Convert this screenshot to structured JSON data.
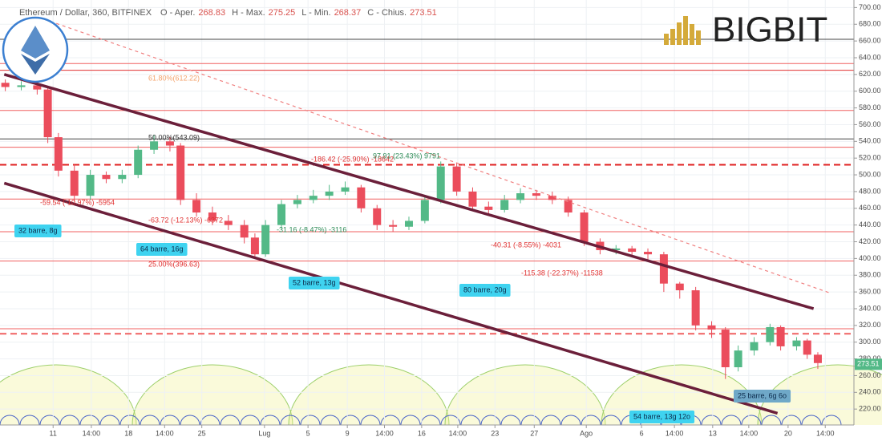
{
  "header": {
    "symbol": "Ethereum / Dollar, 360, BITFINEX",
    "fields": [
      {
        "label": "O - Aper.",
        "value": 268.83
      },
      {
        "label": "H - Max.",
        "value": 275.25
      },
      {
        "label": "L - Min.",
        "value": 268.37
      },
      {
        "label": "C - Chius.",
        "value": 273.51
      }
    ],
    "logo": "BIGBIT"
  },
  "chart_data": {
    "type": "candlestick",
    "up_color": "#53b987",
    "down_color": "#eb4d5c",
    "grid": true,
    "x": [
      0.5,
      2,
      3.5,
      4.5,
      5.5,
      7,
      8.5,
      10,
      11.5,
      13,
      14.5,
      16,
      17,
      18.5,
      20,
      21.5,
      23,
      24,
      25,
      26.5,
      28,
      29.5,
      31,
      32.5,
      34,
      35.5,
      37,
      38.5,
      40,
      41.5,
      43,
      44.5,
      46,
      47.5,
      49,
      50.5,
      52,
      53.5,
      55,
      56.5,
      58,
      59.5,
      61,
      62.5,
      64,
      65.5,
      67,
      68.3,
      69.5,
      71,
      72.5,
      73.5,
      75,
      76,
      77
    ],
    "open": [
      610,
      605,
      607,
      602,
      545,
      505,
      475,
      500,
      495,
      500,
      530,
      540,
      535,
      470,
      455,
      445,
      440,
      425,
      405,
      440,
      465,
      470,
      475,
      480,
      485,
      460,
      440,
      438,
      445,
      470,
      510,
      480,
      462,
      458,
      470,
      478,
      475,
      470,
      455,
      420,
      410,
      412,
      408,
      405,
      370,
      362,
      320,
      315,
      270,
      290,
      300,
      318,
      295,
      302,
      285
    ],
    "high": [
      614,
      612,
      610,
      604,
      550,
      512,
      506,
      504,
      506,
      535,
      548,
      545,
      538,
      478,
      462,
      452,
      446,
      430,
      446,
      470,
      476,
      482,
      488,
      492,
      488,
      464,
      446,
      450,
      476,
      516,
      514,
      485,
      468,
      476,
      484,
      482,
      480,
      474,
      458,
      424,
      416,
      415,
      412,
      408,
      372,
      366,
      325,
      318,
      296,
      306,
      322,
      320,
      306,
      304,
      288
    ],
    "low": [
      600,
      601,
      596,
      538,
      498,
      468,
      470,
      490,
      490,
      496,
      525,
      528,
      464,
      450,
      440,
      434,
      418,
      400,
      402,
      436,
      460,
      466,
      470,
      476,
      455,
      434,
      432,
      434,
      442,
      466,
      475,
      458,
      452,
      455,
      466,
      470,
      465,
      450,
      415,
      405,
      405,
      403,
      398,
      360,
      352,
      314,
      305,
      256,
      265,
      284,
      296,
      290,
      290,
      280,
      268
    ],
    "close": [
      605,
      607,
      602,
      545,
      505,
      475,
      500,
      495,
      500,
      530,
      540,
      535,
      470,
      455,
      445,
      440,
      425,
      405,
      440,
      465,
      470,
      475,
      480,
      485,
      460,
      440,
      438,
      445,
      470,
      510,
      480,
      462,
      458,
      470,
      478,
      475,
      470,
      455,
      420,
      410,
      412,
      408,
      405,
      370,
      362,
      320,
      315,
      270,
      290,
      300,
      318,
      295,
      302,
      285,
      275
    ],
    "last_price": 273.51,
    "xlim": [
      0,
      80.4
    ],
    "xticks": [
      {
        "value": 5,
        "label": "11"
      },
      {
        "value": 8.6,
        "label": "14:00"
      },
      {
        "value": 12.1,
        "label": "18"
      },
      {
        "value": 15.5,
        "label": "14:00"
      },
      {
        "value": 19,
        "label": "25"
      },
      {
        "value": 24.9,
        "label": "Lug"
      },
      {
        "value": 29,
        "label": "5"
      },
      {
        "value": 32.7,
        "label": "9"
      },
      {
        "value": 36.2,
        "label": "14:00"
      },
      {
        "value": 39.7,
        "label": "16"
      },
      {
        "value": 43.1,
        "label": "14:00"
      },
      {
        "value": 46.6,
        "label": "23"
      },
      {
        "value": 50.3,
        "label": "27"
      },
      {
        "value": 55.2,
        "label": "Ago"
      },
      {
        "value": 60.4,
        "label": "6"
      },
      {
        "value": 63.5,
        "label": "14:00"
      },
      {
        "value": 67.1,
        "label": "13"
      },
      {
        "value": 70.5,
        "label": "14:00"
      },
      {
        "value": 74.2,
        "label": "20"
      },
      {
        "value": 77.7,
        "label": "14:00"
      }
    ],
    "ylim": [
      201,
      709
    ],
    "yticks": [
      {
        "value": 220,
        "label": "220.00"
      },
      {
        "value": 240,
        "label": "240.00"
      },
      {
        "value": 260,
        "label": "260.00"
      },
      {
        "value": 280,
        "label": "280.00"
      },
      {
        "value": 300,
        "label": "300.00"
      },
      {
        "value": 320,
        "label": "320.00"
      },
      {
        "value": 340,
        "label": "340.00"
      },
      {
        "value": 360,
        "label": "360.00"
      },
      {
        "value": 380,
        "label": "380.00"
      },
      {
        "value": 400,
        "label": "400.00"
      },
      {
        "value": 420,
        "label": "420.00"
      },
      {
        "value": 440,
        "label": "440.00"
      },
      {
        "value": 460,
        "label": "460.00"
      },
      {
        "value": 480,
        "label": "480.00"
      },
      {
        "value": 500,
        "label": "500.00"
      },
      {
        "value": 520,
        "label": "520.00"
      },
      {
        "value": 540,
        "label": "540.00"
      },
      {
        "value": 560,
        "label": "560.00"
      },
      {
        "value": 580,
        "label": "580.00"
      },
      {
        "value": 600,
        "label": "600.00"
      },
      {
        "value": 620,
        "label": "620.00"
      },
      {
        "value": 640,
        "label": "640.00"
      },
      {
        "value": 660,
        "label": "660.00"
      },
      {
        "value": 680,
        "label": "680.00"
      },
      {
        "value": 700,
        "label": "700.00"
      }
    ],
    "levels": [
      {
        "value": 662,
        "color": "#444444"
      },
      {
        "value": 633,
        "color": "#f06060"
      },
      {
        "value": 625,
        "color": "#e03030"
      },
      {
        "value": 577,
        "color": "#f06060"
      },
      {
        "value": 543,
        "color": "#444444"
      },
      {
        "value": 533,
        "color": "#f06060"
      },
      {
        "value": 512,
        "color": "#e02020",
        "dashed": true
      },
      {
        "value": 471,
        "color": "#f06060"
      },
      {
        "value": 432,
        "color": "#f06060"
      },
      {
        "value": 397,
        "color": "#f06060"
      },
      {
        "value": 316,
        "color": "#f06060"
      },
      {
        "value": 310,
        "color": "#f06060",
        "dashed": true
      }
    ],
    "trend_lines": [
      {
        "points": [
          [
            0.4,
            620
          ],
          [
            76.6,
            340
          ]
        ],
        "color": "#6b1f3a"
      },
      {
        "points": [
          [
            0.4,
            490
          ],
          [
            73.2,
            215
          ]
        ],
        "color": "#6b1f3a"
      },
      {
        "points": [
          [
            5.3,
            681
          ],
          [
            78.1,
            359
          ]
        ],
        "color": "#f08080",
        "dashed": true
      }
    ],
    "annotations": [
      {
        "text": "61.80%(612.22)",
        "color": "#f4a36b"
      },
      {
        "text": "50.00%(543.09)",
        "color": "#333333"
      },
      {
        "text": "25.00%(396.63)",
        "color": "#e03030"
      },
      {
        "text": "-186.42 (-25.90%) -18642",
        "color": "#e03030"
      },
      {
        "text": "97.91 (23.43%) 9791",
        "color": "#2e8b57"
      },
      {
        "text": "-63.72 (-12.13%) -6372",
        "color": "#e03030"
      },
      {
        "text": "-59.54 (-10.97%) -5954",
        "color": "#e03030"
      },
      {
        "text": "-31.16 (-8.47%) -3116",
        "color": "#2e8b57"
      },
      {
        "text": "-40.31 (-8.55%) -4031",
        "color": "#e03030"
      },
      {
        "text": "-115.38 (-22.37%) -11538",
        "color": "#e03030"
      }
    ],
    "range_labels": [
      {
        "text": "32 barre, 8g",
        "color": "#3fd3f0"
      },
      {
        "text": "64 barre, 16g",
        "color": "#3fd3f0"
      },
      {
        "text": "52 barre, 13g",
        "color": "#3fd3f0"
      },
      {
        "text": "80 barre, 20g",
        "color": "#3fd3f0"
      },
      {
        "text": "54 barre, 13g 12o",
        "color": "#3fd3f0"
      },
      {
        "text": "25 barre, 6g 6o",
        "color": "#6fa8c8"
      }
    ]
  }
}
